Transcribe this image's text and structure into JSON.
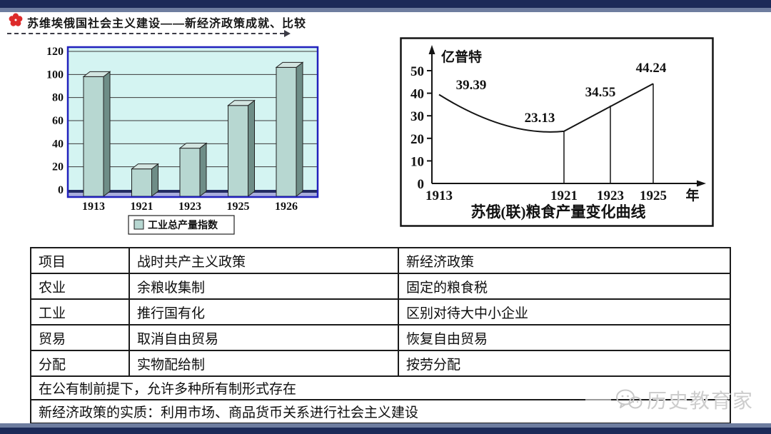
{
  "header": {
    "title": "苏维埃俄国社会主义建设——新经济政策成就、比较"
  },
  "chart_data": [
    {
      "id": "industrial_output_index",
      "type": "bar",
      "title": "",
      "legend": "工业总产量指数",
      "legend_position": "bottom",
      "categories": [
        "1913",
        "1921",
        "1923",
        "1925",
        "1926"
      ],
      "values": [
        100,
        20,
        38,
        75,
        108
      ],
      "ylim": [
        0,
        120
      ],
      "yticks": [
        0,
        20,
        40,
        60,
        80,
        100,
        120
      ],
      "grid": true,
      "style_3d": true
    },
    {
      "id": "grain_output_curve",
      "type": "line",
      "title": "苏俄(联)粮食产量变化曲线",
      "ylabel": "亿普特",
      "xlabel": "年",
      "x": [
        "1913",
        "1921",
        "1923",
        "1925"
      ],
      "values": [
        39.39,
        23.13,
        34.55,
        44.24
      ],
      "point_labels": [
        "39.39",
        "23.13",
        "34.55",
        "44.24"
      ],
      "ylim": [
        0,
        50
      ],
      "yticks": [
        0,
        10,
        20,
        30,
        40,
        50
      ],
      "drop_lines_at": [
        "1921",
        "1923",
        "1925"
      ],
      "grid": false,
      "legend_position": "none"
    }
  ],
  "table": {
    "header_row": [
      "项目",
      "战时共产主义政策",
      "新经济政策"
    ],
    "rows": [
      [
        "农业",
        "余粮收集制",
        "固定的粮食税"
      ],
      [
        "工业",
        "推行国有化",
        "区别对待大中小企业"
      ],
      [
        "贸易",
        "取消自由贸易",
        "恢复自由贸易"
      ],
      [
        "分配",
        "实物配给制",
        "按劳分配"
      ]
    ],
    "span_rows": [
      "在公有制前提下，允许多种所有制形式存在",
      "新经济政策的实质：利用市场、商品货币关系进行社会主义建设"
    ]
  },
  "watermark": {
    "text": "历史教育家"
  },
  "colors": {
    "navy": "#1c2a58",
    "stripe": "#6e7d9f",
    "plot_bg": "#d4f4f2",
    "plot_frame": "#2121bd",
    "floor_front": "#a9aedd",
    "floor_top": "#242c63",
    "bar_front": "#b7d7d1",
    "bar_side": "#6e8d87",
    "bar_top": "#d3e5e1",
    "flower_red": "#dd2b2b",
    "ink": "#141414"
  }
}
